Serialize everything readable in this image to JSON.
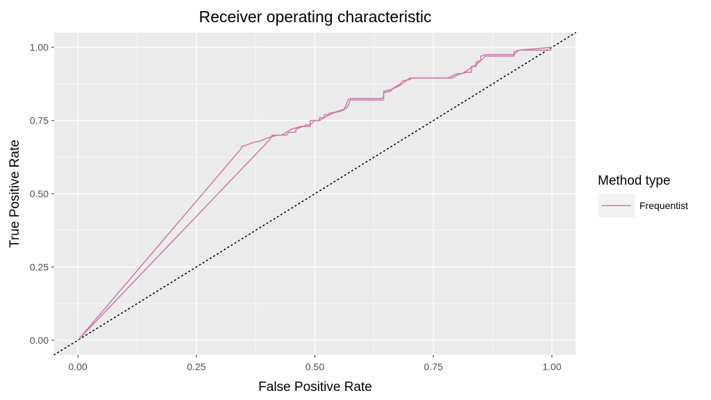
{
  "chart_data": {
    "type": "line",
    "title": "Receiver operating characteristic",
    "xlabel": "False Positive Rate",
    "ylabel": "True Positive Rate",
    "xlim": [
      -0.05,
      1.05
    ],
    "ylim": [
      -0.05,
      1.05
    ],
    "x_ticks": [
      "0.00",
      "0.25",
      "0.50",
      "0.75",
      "1.00"
    ],
    "y_ticks": [
      "0.00",
      "0.25",
      "0.50",
      "0.75",
      "1.00"
    ],
    "x_tick_values": [
      0,
      0.25,
      0.5,
      0.75,
      1.0
    ],
    "y_tick_values": [
      0,
      0.25,
      0.5,
      0.75,
      1.0
    ],
    "grid": true,
    "background": "#ebebeb",
    "legend": {
      "title": "Method type",
      "position": "right",
      "entries": [
        {
          "label": "Frequentist",
          "color": "#cc79a7"
        }
      ]
    },
    "reference_line": {
      "from": [
        -0.05,
        -0.05
      ],
      "to": [
        1.05,
        1.05
      ],
      "style": "dotted",
      "color": "#000000"
    },
    "series": [
      {
        "name": "Frequentist",
        "color": "#cc79a7",
        "x": [
          0,
          0.345,
          0.345,
          0.37,
          0.385,
          0.4,
          0.42,
          0.44,
          0.445,
          0.46,
          0.46,
          0.475,
          0.49,
          0.49,
          0.51,
          0.51,
          0.52,
          0.52,
          0.53,
          0.53,
          0.55,
          0.56,
          0.565,
          0.57,
          0.575,
          0.64,
          0.645,
          0.645,
          0.66,
          0.665,
          0.68,
          0.685,
          0.7,
          0.705,
          0.72,
          0.79,
          0.8,
          0.81,
          0.82,
          0.83,
          0.83,
          0.84,
          0.84,
          0.85,
          0.85,
          0.86,
          0.92,
          0.93,
          1.0
        ],
        "y": [
          0,
          0.655,
          0.66,
          0.675,
          0.68,
          0.69,
          0.7,
          0.7,
          0.71,
          0.71,
          0.72,
          0.73,
          0.73,
          0.75,
          0.75,
          0.76,
          0.76,
          0.77,
          0.77,
          0.775,
          0.78,
          0.785,
          0.8,
          0.82,
          0.825,
          0.825,
          0.83,
          0.845,
          0.85,
          0.86,
          0.875,
          0.885,
          0.89,
          0.895,
          0.895,
          0.895,
          0.905,
          0.91,
          0.915,
          0.915,
          0.935,
          0.935,
          0.95,
          0.955,
          0.97,
          0.975,
          0.975,
          0.99,
          0.99
        ]
      },
      {
        "name": "Frequentist",
        "color": "#cc79a7",
        "x": [
          0,
          0.405,
          0.41,
          0.43,
          0.45,
          0.47,
          0.48,
          0.48,
          0.49,
          0.5,
          0.51,
          0.525,
          0.545,
          0.565,
          0.57,
          0.575,
          0.645,
          0.645,
          0.66,
          0.68,
          0.7,
          0.72,
          0.78,
          0.8,
          0.81,
          0.83,
          0.84,
          0.86,
          0.91,
          0.92,
          0.92,
          0.93,
          1.0
        ],
        "y": [
          0,
          0.685,
          0.7,
          0.7,
          0.72,
          0.73,
          0.73,
          0.735,
          0.735,
          0.75,
          0.75,
          0.765,
          0.78,
          0.79,
          0.8,
          0.82,
          0.82,
          0.85,
          0.855,
          0.87,
          0.895,
          0.895,
          0.895,
          0.91,
          0.91,
          0.93,
          0.94,
          0.97,
          0.97,
          0.97,
          0.985,
          0.99,
          1.0
        ]
      }
    ]
  }
}
